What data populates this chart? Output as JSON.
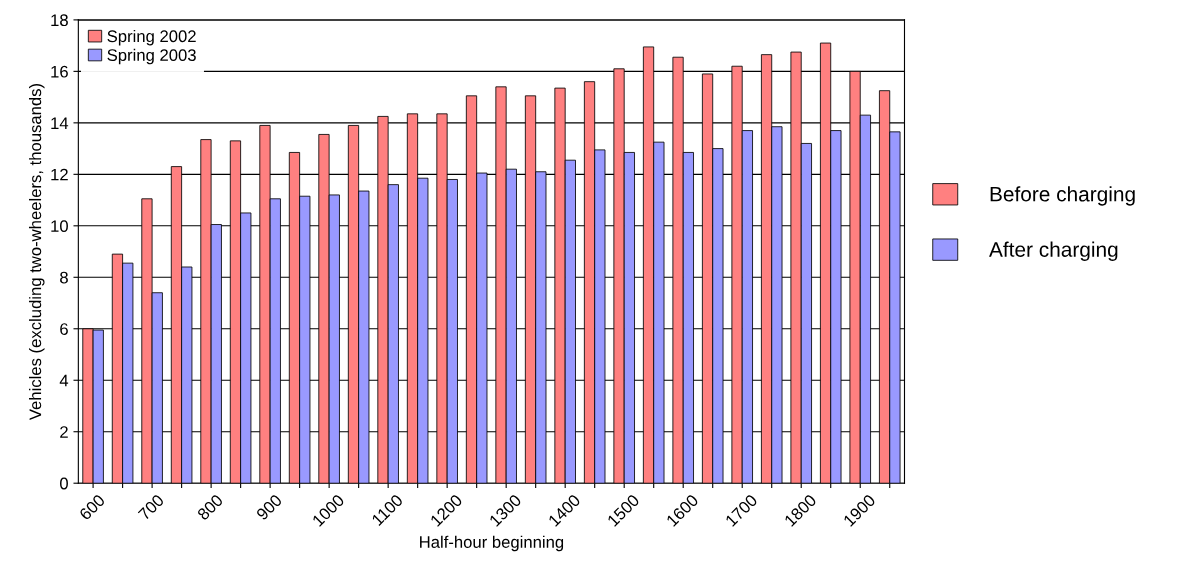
{
  "chart_data": {
    "type": "bar",
    "xlabel": "Half-hour beginning",
    "ylabel": "Vehicles (excluding two-wheelers, thousands)",
    "categories": [
      "600",
      null,
      "700",
      null,
      "800",
      null,
      "900",
      null,
      "1000",
      null,
      "1100",
      null,
      "1200",
      null,
      "1300",
      null,
      "1400",
      null,
      "1500",
      null,
      "1600",
      null,
      "1700",
      null,
      "1800",
      null,
      "1900",
      null
    ],
    "series": [
      {
        "name": "Spring 2002",
        "color": "#ff8080",
        "values": [
          6.0,
          8.9,
          11.05,
          12.3,
          13.35,
          13.3,
          13.9,
          12.85,
          13.55,
          13.9,
          14.25,
          14.35,
          14.35,
          15.05,
          15.4,
          15.05,
          15.35,
          15.6,
          16.1,
          16.95,
          16.55,
          15.9,
          16.2,
          16.65,
          16.75,
          17.1,
          16.0,
          15.25
        ]
      },
      {
        "name": "Spring 2003",
        "color": "#9999ff",
        "values": [
          5.95,
          8.55,
          7.4,
          8.4,
          10.05,
          10.5,
          11.05,
          11.15,
          11.2,
          11.35,
          11.6,
          11.85,
          11.8,
          12.05,
          12.2,
          12.1,
          12.55,
          12.95,
          12.85,
          13.25,
          12.85,
          13.0,
          13.7,
          13.85,
          13.2,
          13.7,
          14.3,
          13.65
        ]
      }
    ],
    "annotations": [
      "Before charging",
      "After charging"
    ],
    "ylim": [
      0,
      18
    ],
    "yticks": [
      0,
      2,
      4,
      6,
      8,
      10,
      12,
      14,
      16,
      18
    ],
    "grid": "y",
    "legend": "top left"
  }
}
